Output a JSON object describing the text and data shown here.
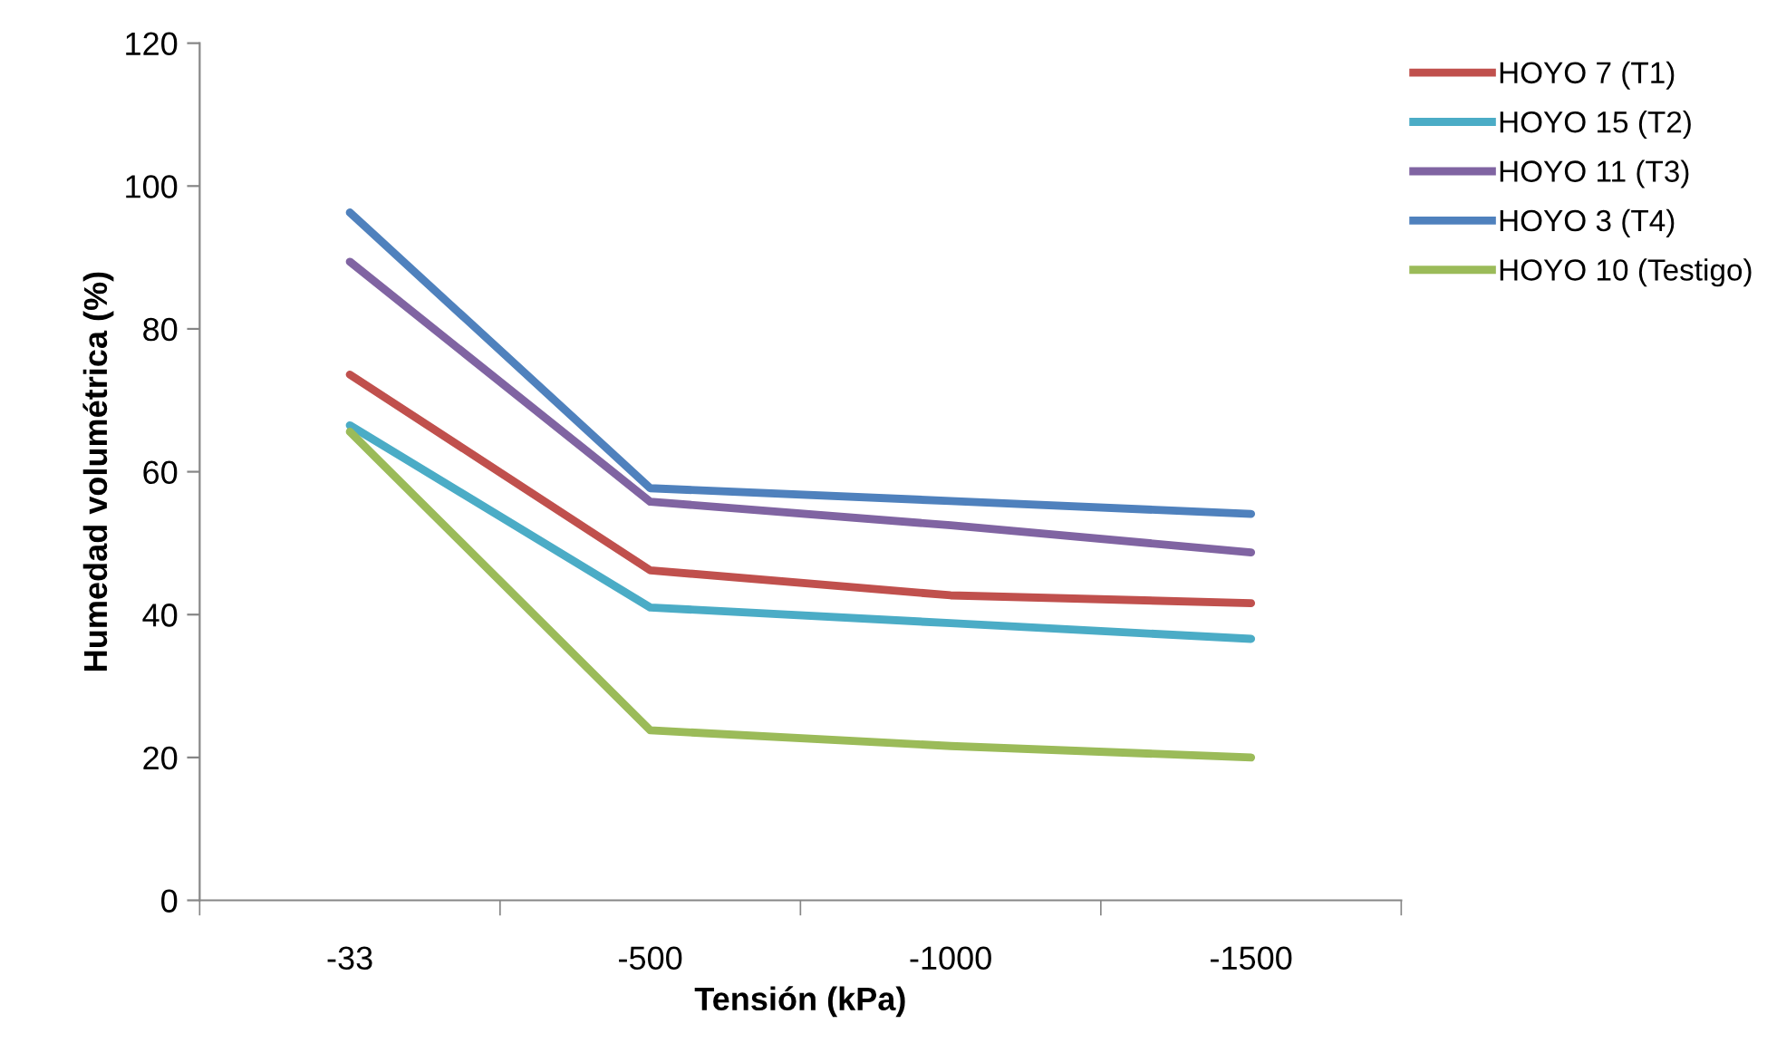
{
  "chart_data": {
    "type": "line",
    "xlabel": "Tensión (kPa)",
    "ylabel": "Humedad volumétrica (%)",
    "categories": [
      "-33",
      "-500",
      "-1000",
      "-1500"
    ],
    "ylim": [
      0,
      120
    ],
    "yticks": [
      0,
      20,
      40,
      60,
      80,
      100,
      120
    ],
    "grid": false,
    "legend": "top right",
    "marker": "none",
    "line_style": "solid",
    "series": [
      {
        "name": "HOYO 7 (T1)",
        "color": "#c0504d",
        "values": [
          73.6,
          46.2,
          42.7,
          41.6
        ]
      },
      {
        "name": "HOYO 15 (T2)",
        "color": "#4bacc6",
        "values": [
          66.5,
          41.0,
          38.8,
          36.6
        ]
      },
      {
        "name": "HOYO 11 (T3)",
        "color": "#8064a2",
        "values": [
          89.4,
          55.8,
          52.5,
          48.7
        ]
      },
      {
        "name": "HOYO 3 (T4)",
        "color": "#4f81bd",
        "values": [
          96.3,
          57.7,
          55.9,
          54.1
        ]
      },
      {
        "name": "HOYO 10 (Testigo)",
        "color": "#9bbb59",
        "values": [
          65.6,
          23.8,
          21.6,
          20.0
        ]
      }
    ]
  }
}
